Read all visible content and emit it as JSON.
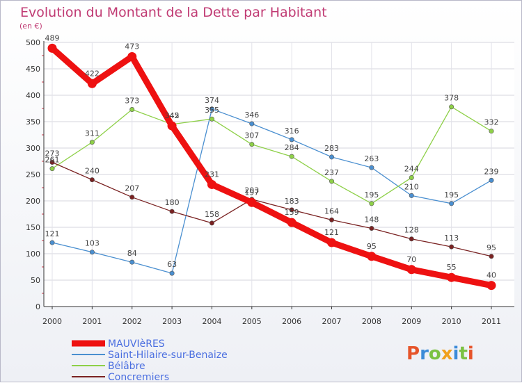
{
  "chart_data": {
    "type": "line",
    "title": "Evolution du Montant de la Dette par Habitant",
    "subtitle": "(en €)",
    "ylim": [
      0,
      500
    ],
    "yticks": [
      0,
      50,
      100,
      150,
      200,
      250,
      300,
      350,
      400,
      450,
      500
    ],
    "x": [
      "2000",
      "2001",
      "2002",
      "2003",
      "2004",
      "2005",
      "2006",
      "2007",
      "2008",
      "2009",
      "2010",
      "2011"
    ],
    "grid": true,
    "legend_position": "bottom-left",
    "series": [
      {
        "name": "MAUVIèRES",
        "color": "#ee1111",
        "emphasis": true,
        "values": [
          489,
          422,
          473,
          342,
          231,
          197,
          159,
          121,
          95,
          70,
          55,
          40
        ]
      },
      {
        "name": "Saint-Hilaire-sur-Benaize",
        "color": "#4a8fd0",
        "values": [
          121,
          103,
          84,
          63,
          374,
          346,
          316,
          283,
          263,
          210,
          195,
          239
        ]
      },
      {
        "name": "Bélâbre",
        "color": "#8ed048",
        "values": [
          261,
          311,
          373,
          345,
          355,
          307,
          284,
          237,
          195,
          244,
          378,
          332
        ]
      },
      {
        "name": "Concremiers",
        "color": "#7a2222",
        "values": [
          273,
          240,
          207,
          180,
          158,
          203,
          183,
          164,
          148,
          128,
          113,
          95
        ]
      }
    ]
  },
  "logo": {
    "letters": [
      "P",
      "r",
      "o",
      "x",
      "i",
      "t",
      "i"
    ],
    "colors": [
      "#e6542a",
      "#3b8bd8",
      "#7cc243",
      "#f0a11e",
      "#3b8bd8",
      "#7cc243",
      "#e6542a"
    ]
  }
}
